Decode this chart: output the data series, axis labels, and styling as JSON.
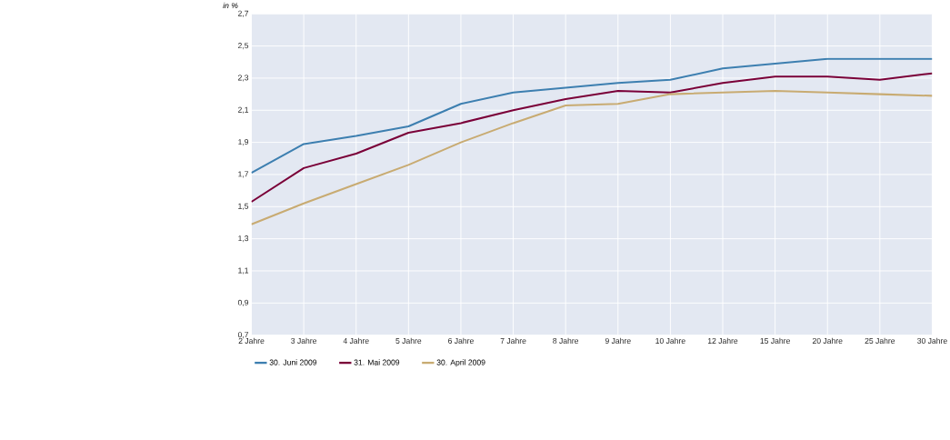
{
  "chart_data": {
    "type": "line",
    "ylabel": "in %",
    "categories": [
      "2 Jahre",
      "3 Jahre",
      "4 Jahre",
      "5 Jahre",
      "6 Jahre",
      "7 Jahre",
      "8 Jahre",
      "9 Jahre",
      "10 Jahre",
      "12 Jahre",
      "15 Jahre",
      "20 Jahre",
      "25 Jahre",
      "30 Jahre"
    ],
    "series": [
      {
        "name": "30. Juni 2009",
        "color": "#3d7fb0",
        "values": [
          1.71,
          1.89,
          1.94,
          2.0,
          2.14,
          2.21,
          2.24,
          2.27,
          2.29,
          2.36,
          2.39,
          2.42,
          2.42,
          2.42
        ]
      },
      {
        "name": "31. Mai 2009",
        "color": "#7a0038",
        "values": [
          1.53,
          1.74,
          1.83,
          1.96,
          2.02,
          2.1,
          2.17,
          2.22,
          2.21,
          2.27,
          2.31,
          2.31,
          2.29,
          2.33
        ]
      },
      {
        "name": "30. April 2009",
        "color": "#c8ab72",
        "values": [
          1.39,
          1.52,
          1.64,
          1.76,
          1.9,
          2.02,
          2.13,
          2.14,
          2.2,
          2.21,
          2.22,
          2.21,
          2.2,
          2.19
        ]
      }
    ],
    "ylim": [
      0.7,
      2.7
    ],
    "yticks": [
      {
        "value": 0.7,
        "label": "0,7"
      },
      {
        "value": 0.9,
        "label": "0,9"
      },
      {
        "value": 1.1,
        "label": "1,1"
      },
      {
        "value": 1.3,
        "label": "1,3"
      },
      {
        "value": 1.5,
        "label": "1,5"
      },
      {
        "value": 1.7,
        "label": "1,7"
      },
      {
        "value": 1.9,
        "label": "1,9"
      },
      {
        "value": 2.1,
        "label": "2,1"
      },
      {
        "value": 2.3,
        "label": "2,3"
      },
      {
        "value": 2.5,
        "label": "2,5"
      },
      {
        "value": 2.7,
        "label": "2,7"
      }
    ],
    "grid": true,
    "legend": "bottom left",
    "marker": "none",
    "line_style": "solid"
  }
}
